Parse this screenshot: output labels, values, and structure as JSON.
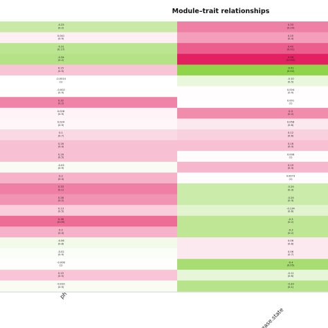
{
  "chart_data": {
    "type": "heatmap",
    "title": "Module–trait relationships",
    "columns": [
      "ph",
      "disease.state"
    ],
    "color_scale": {
      "negative": "#7ccc2a",
      "zero": "#ffffff",
      "positive": "#e2185b"
    },
    "rows": [
      {
        "values": [
          -0.25,
          0.33
        ],
        "labels": [
          [
            "-0.25",
            "(0.2)"
          ],
          [
            "0.33",
            "(0.29)"
          ]
        ]
      },
      {
        "values": [
          0.041,
          0.25
        ],
        "labels": [
          [
            "0.041",
            "(0.9)"
          ],
          [
            "0.25",
            "(0.4)"
          ]
        ]
      },
      {
        "values": [
          -0.31,
          0.42
        ],
        "labels": [
          [
            "-0.31",
            "(0.17)"
          ],
          [
            "0.42",
            "(0.01)"
          ]
        ]
      },
      {
        "values": [
          -0.34,
          0.58
        ],
        "labels": [
          [
            "-0.34",
            "(0.2)"
          ],
          [
            "0.58",
            "(0.005)"
          ]
        ]
      },
      {
        "values": [
          0.15,
          -0.51
        ],
        "labels": [
          [
            "0.15",
            "(0.5)"
          ],
          [
            "-0.51",
            "(0.02)"
          ]
        ]
      },
      {
        "values": [
          -0.0014,
          -0.1
        ],
        "labels": [
          [
            "-0.0014",
            "(1)"
          ],
          [
            "-0.10",
            "(0.5)"
          ]
        ]
      },
      {
        "values": [
          -0.002,
          0.004
        ],
        "labels": [
          [
            "-0.002",
            "(0.9)"
          ],
          [
            "0.004",
            "(0.9)"
          ]
        ]
      },
      {
        "values": [
          0.32,
          0.001
        ],
        "labels": [
          [
            "0.32",
            "(0.2)"
          ],
          [
            "0.001",
            "(1)"
          ]
        ]
      },
      {
        "values": [
          0.028,
          0.3
        ],
        "labels": [
          [
            "0.028",
            "(0.9)"
          ],
          [
            "0.3",
            "(0.2)"
          ]
        ]
      },
      {
        "values": [
          0.024,
          0.058
        ],
        "labels": [
          [
            "0.024",
            "(0.9)"
          ],
          [
            "0.058",
            "(0.8)"
          ]
        ]
      },
      {
        "values": [
          0.1,
          0.12
        ],
        "labels": [
          [
            "0.1",
            "(0.7)"
          ],
          [
            "0.12",
            "(0.6)"
          ]
        ]
      },
      {
        "values": [
          0.16,
          0.16
        ],
        "labels": [
          [
            "0.16",
            "(0.4)"
          ],
          [
            "0.16",
            "(0.4)"
          ]
        ]
      },
      {
        "values": [
          0.16,
          0.008
        ],
        "labels": [
          [
            "0.16",
            "(0.5)"
          ],
          [
            "0.008",
            "(1)"
          ]
        ]
      },
      {
        "values": [
          -0.03,
          0.19
        ],
        "labels": [
          [
            "-0.03",
            "(0.9)"
          ],
          [
            "0.19",
            "(0.3)"
          ]
        ]
      },
      {
        "values": [
          0.2,
          0.0073
        ],
        "labels": [
          [
            "0.2",
            "(0.4)"
          ],
          [
            "0.0073",
            "(1)"
          ]
        ]
      },
      {
        "values": [
          0.33,
          -0.24
        ],
        "labels": [
          [
            "0.33",
            "(0.1)"
          ],
          [
            "-0.24",
            "(0.3)"
          ]
        ]
      },
      {
        "values": [
          0.28,
          -0.24
        ],
        "labels": [
          [
            "0.28",
            "(0.2)"
          ],
          [
            "-0.24",
            "(0.3)"
          ]
        ]
      },
      {
        "values": [
          0.13,
          -0.134
        ],
        "labels": [
          [
            "0.13",
            "(0.5)"
          ],
          [
            "-0.134",
            "(0.6)"
          ]
        ]
      },
      {
        "values": [
          0.38,
          -0.3
        ],
        "labels": [
          [
            "0.38",
            "(0.09)"
          ],
          [
            "-0.3",
            "(0.2)"
          ]
        ]
      },
      {
        "values": [
          0.2,
          -0.3
        ],
        "labels": [
          [
            "0.2",
            "(0.4)"
          ],
          [
            "-0.3",
            "(0.2)"
          ]
        ]
      },
      {
        "values": [
          -0.06,
          0.06
        ],
        "labels": [
          [
            "-0.06",
            "(0.8)"
          ],
          [
            "0.06",
            "(0.8)"
          ]
        ]
      },
      {
        "values": [
          -0.02,
          0.06
        ],
        "labels": [
          [
            "-0.02",
            "(0.9)"
          ],
          [
            "0.06",
            "(0.7)"
          ]
        ]
      },
      {
        "values": [
          -0.006,
          -0.4
        ],
        "labels": [
          [
            "-0.006",
            "(1)"
          ],
          [
            "-0.4",
            "(0.05)"
          ]
        ]
      },
      {
        "values": [
          0.15,
          -0.11
        ],
        "labels": [
          [
            "0.15",
            "(0.5)"
          ],
          [
            "-0.11",
            "(0.6)"
          ]
        ]
      },
      {
        "values": [
          -0.032,
          -0.33
        ],
        "labels": [
          [
            "-0.032",
            "(0.9)"
          ],
          [
            "-0.33",
            "(0.1)"
          ]
        ]
      }
    ]
  }
}
